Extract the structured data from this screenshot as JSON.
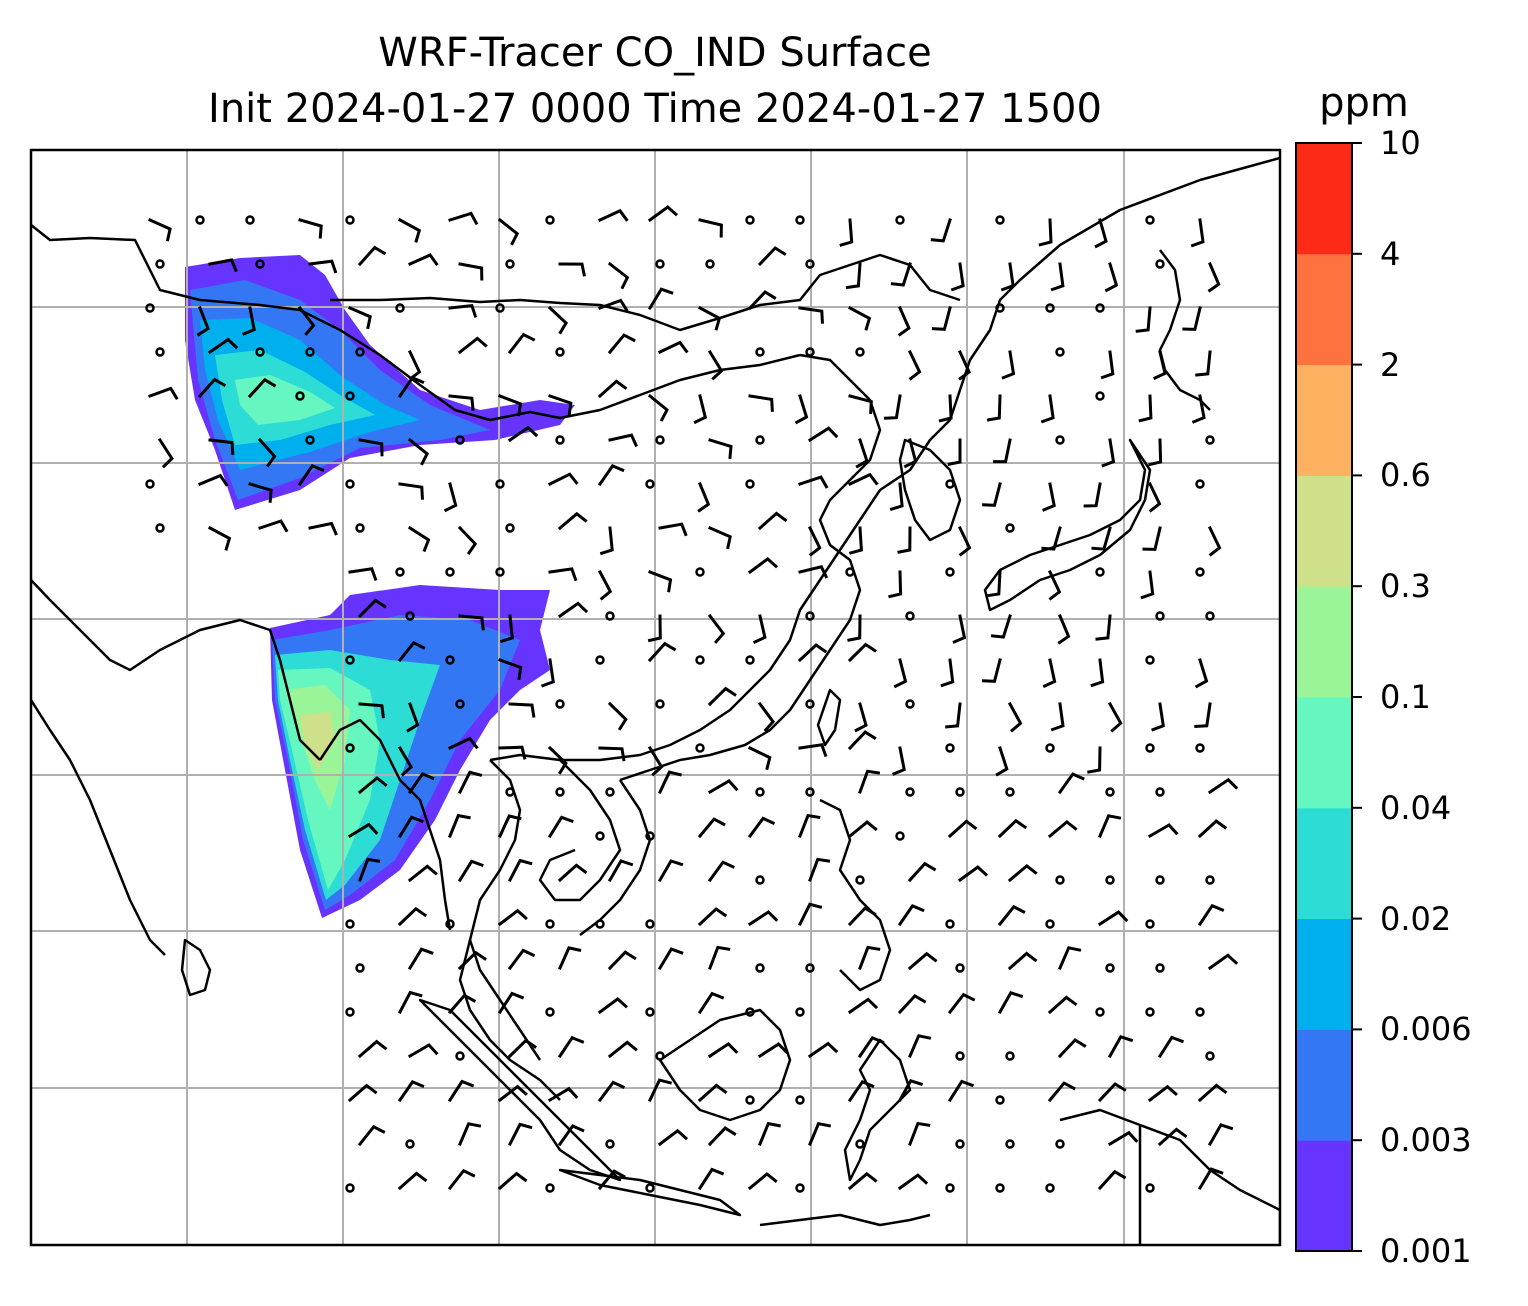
{
  "title": {
    "line1": "WRF-Tracer CO_IND Surface",
    "line2": "Init 2024-01-27 0000 Time 2024-01-27 1500"
  },
  "colorbar": {
    "unit": "ppm",
    "ticks": [
      "0.001",
      "0.003",
      "0.006",
      "0.02",
      "0.04",
      "0.1",
      "0.3",
      "0.6",
      "2",
      "4",
      "10"
    ],
    "colors": [
      "#6633ff",
      "#3377f5",
      "#00b0ee",
      "#2edcd6",
      "#66f7c0",
      "#99f598",
      "#cfe08a",
      "#fdb060",
      "#fe7240",
      "#fe2a18"
    ]
  },
  "map": {
    "background": "#ffffff",
    "gridline_color": "#b0b0b0",
    "coastline_color": "#000000",
    "field": "CO_IND tracer concentration",
    "wind_symbol": "barbs"
  }
}
